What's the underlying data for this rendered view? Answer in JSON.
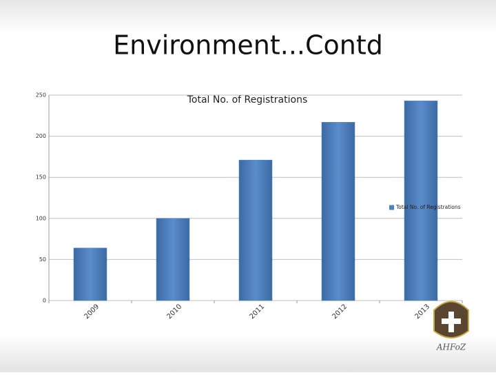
{
  "slide": {
    "title": "Environment...Contd"
  },
  "logo": {
    "text": "AHFoZ"
  },
  "chart_data": {
    "type": "bar",
    "title": "Total No. of Registrations",
    "categories": [
      "2009",
      "2010",
      "2011",
      "2012",
      "2013"
    ],
    "series": [
      {
        "name": "Total No. of Registrations",
        "color": "#4f81bd",
        "values": [
          64,
          100,
          171,
          217,
          243
        ]
      }
    ],
    "ylim": [
      0,
      250
    ],
    "yticks": [
      0,
      50,
      100,
      150,
      200,
      250
    ],
    "grid": true,
    "legend": "right"
  }
}
